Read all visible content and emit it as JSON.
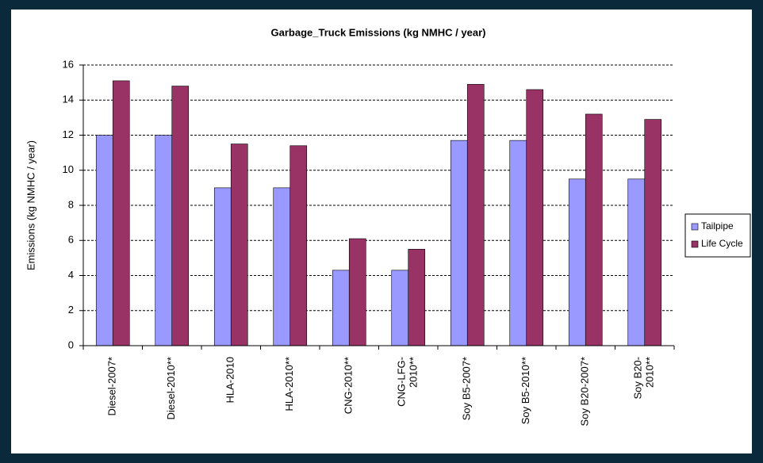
{
  "chart_data": {
    "type": "bar",
    "title": "Garbage_Truck Emissions  (kg NMHC   / year)",
    "y_axis_label": "Emissions (kg NMHC  / year)",
    "categories": [
      "Diesel-2007*",
      "Diesel-2010**",
      "HLA-2010",
      "HLA-2010**",
      "CNG-2010**",
      "CNG-LFG-2010**",
      "Soy B5-2007*",
      "Soy B5-2010**",
      "Soy B20-2007*",
      "Soy B20-2010**"
    ],
    "series": [
      {
        "name": "Tailpipe",
        "color": "#9999ff",
        "values": [
          12,
          12,
          9,
          9,
          4.3,
          4.3,
          11.7,
          11.7,
          9.5,
          9.5
        ]
      },
      {
        "name": "Life Cycle",
        "color": "#993366",
        "values": [
          15.1,
          14.8,
          11.5,
          11.4,
          6.1,
          5.5,
          14.9,
          14.6,
          13.2,
          12.9
        ]
      }
    ],
    "ylim": [
      0,
      16
    ],
    "yticks": [
      0,
      2,
      4,
      6,
      8,
      10,
      12,
      14,
      16
    ],
    "grid": true,
    "legend": "right"
  }
}
